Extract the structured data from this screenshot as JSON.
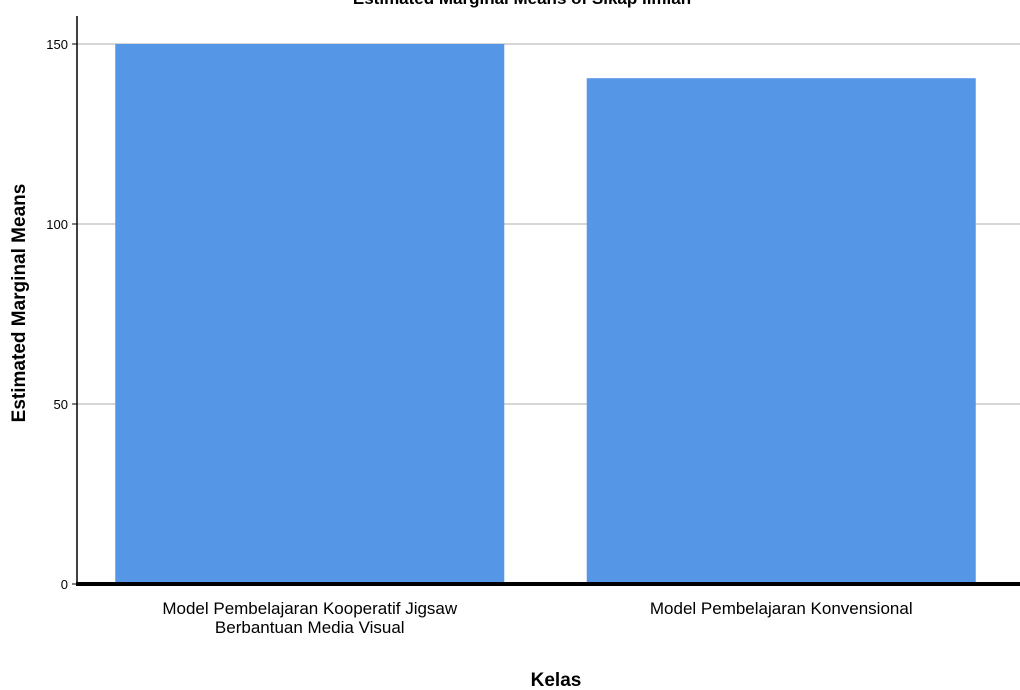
{
  "chart_data": {
    "type": "bar",
    "title": "Estimated Marginal Means of Sikap Ilmiah",
    "xlabel": "Kelas",
    "ylabel": "Estimated Marginal Means",
    "categories": [
      [
        "Model Pembelajaran Kooperatif Jigsaw",
        "Berbantuan Media Visual"
      ],
      [
        "Model Pembelajaran Konvensional"
      ]
    ],
    "values": [
      150,
      140.5
    ],
    "ylim": [
      0,
      160
    ],
    "yticks": [
      0,
      50,
      100,
      150
    ],
    "grid": true,
    "legend": "none",
    "bar_color": "#5596e6"
  }
}
